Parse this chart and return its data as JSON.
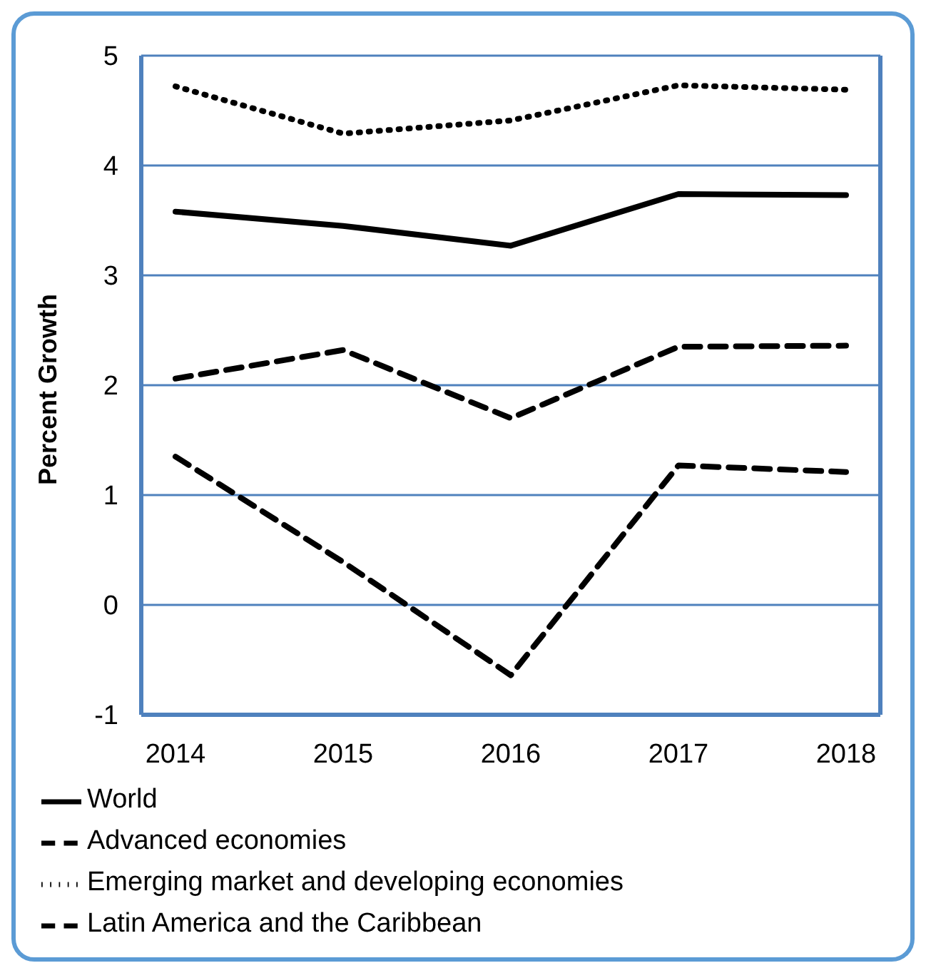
{
  "chart_data": {
    "type": "line",
    "ylabel": "Percent Growth",
    "categories": [
      "2014",
      "2015",
      "2016",
      "2017",
      "2018"
    ],
    "series": [
      {
        "name": "World",
        "color": "#000000",
        "line_style": "solid",
        "values": [
          3.58,
          3.45,
          3.27,
          3.74,
          3.73
        ]
      },
      {
        "name": "Advanced economies",
        "color": "#000000",
        "line_style": "dashed",
        "values": [
          2.06,
          2.32,
          1.7,
          2.35,
          2.36
        ]
      },
      {
        "name": "Emerging market and developing economies",
        "color": "#000000",
        "line_style": "dotted",
        "values": [
          4.72,
          4.29,
          4.41,
          4.73,
          4.69
        ]
      },
      {
        "name": "Latin America and the Caribbean",
        "color": "#000000",
        "line_style": "dashed",
        "values": [
          1.35,
          0.39,
          -0.64,
          1.27,
          1.21
        ]
      }
    ],
    "ylim": [
      -1,
      5
    ],
    "yticks": [
      -1,
      0,
      1,
      2,
      3,
      4,
      5
    ],
    "grid": "y",
    "legend": "bottom",
    "marker": "none"
  }
}
